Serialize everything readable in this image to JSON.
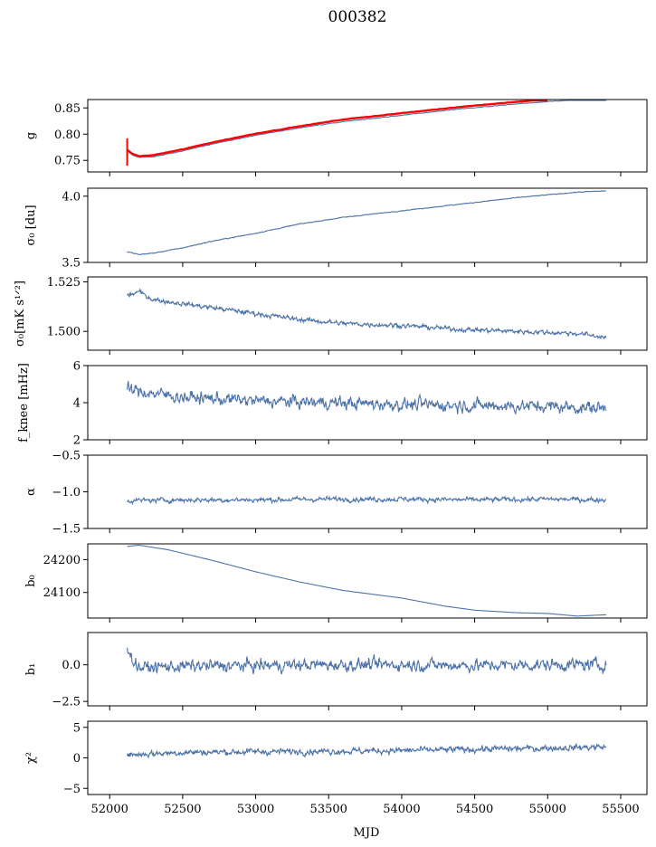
{
  "figure": {
    "title": "000382",
    "xlabel": "MJD",
    "xticks": [
      52000,
      52500,
      53000,
      53500,
      54000,
      54500,
      55000,
      55500
    ],
    "xlim": [
      51850,
      55680
    ]
  },
  "colors": {
    "series": "#4c72a8",
    "overlay": "#ff0000"
  },
  "chart_data": [
    {
      "type": "line",
      "panel": "g",
      "ylabel": "g",
      "ylim": [
        0.728,
        0.866
      ],
      "yticks": [
        0.75,
        0.8,
        0.85
      ],
      "ytick_labels": [
        "0.75",
        "0.80",
        "0.85"
      ],
      "series": [
        {
          "x": [
            52120,
            52160,
            52200,
            52300,
            52500,
            52700,
            53000,
            53300,
            53600,
            54000,
            54400,
            54800,
            55200,
            55400
          ],
          "y": [
            0.768,
            0.76,
            0.756,
            0.757,
            0.768,
            0.781,
            0.798,
            0.812,
            0.824,
            0.836,
            0.848,
            0.858,
            0.866,
            0.868
          ]
        },
        {
          "name": "",
          "x": [
            52120,
            52160,
            52200,
            52300,
            52500,
            52700,
            53000,
            53300,
            53600,
            54000,
            54400,
            54800,
            55000
          ],
          "y": [
            0.77,
            0.762,
            0.758,
            0.76,
            0.771,
            0.784,
            0.801,
            0.815,
            0.828,
            0.84,
            0.852,
            0.862,
            0.866
          ]
        }
      ]
    },
    {
      "type": "line",
      "panel": "sigma0",
      "ylabel": "σ₀ [du]",
      "ylim": [
        3.5,
        4.06
      ],
      "yticks": [
        3.5,
        4.0
      ],
      "ytick_labels": [
        "3.5",
        "4.0"
      ],
      "series": [
        {
          "x": [
            52120,
            52200,
            52300,
            52500,
            52700,
            53000,
            53300,
            53600,
            54000,
            54400,
            54800,
            55200,
            55400
          ],
          "y": [
            3.58,
            3.56,
            3.57,
            3.61,
            3.66,
            3.72,
            3.79,
            3.84,
            3.89,
            3.94,
            3.99,
            4.03,
            4.04
          ]
        }
      ]
    },
    {
      "type": "line",
      "panel": "sigma0K",
      "ylabel": "σ₀[mK s¹ᐟ²]",
      "ylim": [
        1.4905,
        1.5275
      ],
      "yticks": [
        1.5,
        1.525
      ],
      "ytick_labels": [
        "1.500",
        "1.525"
      ],
      "series": [
        {
          "x": [
            52120,
            52200,
            52300,
            52500,
            52700,
            53000,
            53300,
            53600,
            54000,
            54400,
            54800,
            55200,
            55400
          ],
          "y": [
            1.518,
            1.52,
            1.516,
            1.514,
            1.512,
            1.509,
            1.506,
            1.504,
            1.503,
            1.501,
            1.5,
            1.499,
            1.497
          ]
        }
      ]
    },
    {
      "type": "line",
      "panel": "fknee",
      "ylabel": "f_knee [mHz]",
      "ylim": [
        2,
        6
      ],
      "yticks": [
        2,
        4,
        6
      ],
      "ytick_labels": [
        "2",
        "4",
        "6"
      ],
      "series": [
        {
          "x": [
            52120,
            52300,
            52500,
            53000,
            53500,
            54000,
            54500,
            55000,
            55400
          ],
          "y": [
            4.7,
            4.5,
            4.3,
            4.1,
            4.0,
            3.9,
            3.85,
            3.8,
            3.7
          ]
        }
      ]
    },
    {
      "type": "line",
      "panel": "alpha",
      "ylabel": "α",
      "ylim": [
        -1.5,
        -0.5
      ],
      "yticks": [
        -1.5,
        -1.0,
        -0.5
      ],
      "ytick_labels": [
        "−1.5",
        "−1.0",
        "−0.5"
      ],
      "series": [
        {
          "x": [
            52120,
            52500,
            53000,
            53500,
            54000,
            54500,
            55000,
            55400
          ],
          "y": [
            -1.12,
            -1.11,
            -1.11,
            -1.1,
            -1.1,
            -1.11,
            -1.1,
            -1.11
          ]
        }
      ]
    },
    {
      "type": "line",
      "panel": "b0",
      "ylabel": "b₀",
      "ylim": [
        24022,
        24248
      ],
      "yticks": [
        24100,
        24200
      ],
      "ytick_labels": [
        "24100",
        "24200"
      ],
      "series": [
        {
          "x": [
            52120,
            52200,
            52400,
            52700,
            53000,
            53300,
            53600,
            54000,
            54300,
            54500,
            54800,
            55000,
            55200,
            55400
          ],
          "y": [
            24240,
            24244,
            24230,
            24198,
            24163,
            24132,
            24106,
            24083,
            24058,
            24046,
            24038,
            24036,
            24028,
            24032
          ]
        }
      ]
    },
    {
      "type": "line",
      "panel": "b1",
      "ylabel": "b₁",
      "ylim": [
        -2.8,
        2.2
      ],
      "yticks": [
        -2.5,
        0.0
      ],
      "ytick_labels": [
        "−2.5",
        "0.0"
      ],
      "series": [
        {
          "x": [
            52120,
            52150,
            52200,
            52500,
            53000,
            53500,
            54000,
            54500,
            55000,
            55400
          ],
          "y": [
            1.5,
            0.4,
            -0.2,
            -0.1,
            -0.05,
            0.0,
            0.0,
            -0.05,
            0.0,
            0.0
          ]
        }
      ]
    },
    {
      "type": "line",
      "panel": "chi2",
      "ylabel": "χ²",
      "ylim": [
        -6,
        6
      ],
      "yticks": [
        -5,
        0,
        5
      ],
      "ytick_labels": [
        "−5",
        "0",
        "5"
      ],
      "series": [
        {
          "x": [
            52120,
            52500,
            53000,
            53500,
            54000,
            54500,
            55000,
            55400
          ],
          "y": [
            0.5,
            0.9,
            1.0,
            1.1,
            1.2,
            1.4,
            1.6,
            1.8
          ]
        }
      ]
    }
  ]
}
